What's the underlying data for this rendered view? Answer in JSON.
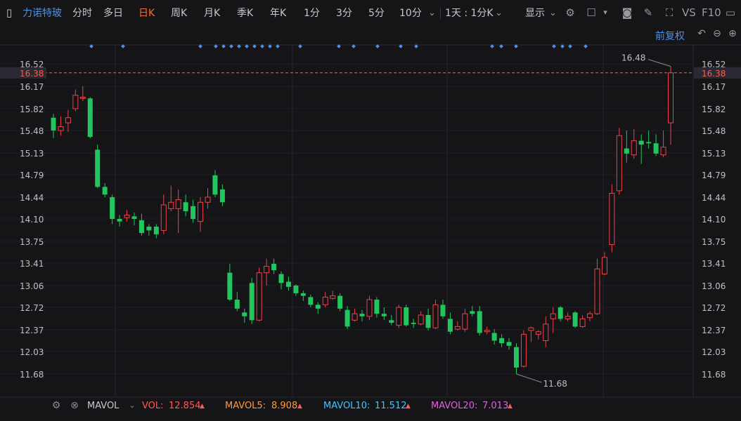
{
  "toolbar": {
    "stock_name": "力诺特玻",
    "tabs": [
      "分时",
      "多日",
      "日K",
      "周K",
      "月K",
      "季K",
      "年K",
      "1分",
      "3分",
      "5分",
      "10分"
    ],
    "active_tab": "日K",
    "interval_select": "1天 : 1分K",
    "display_label": "显示",
    "vs_label": "VS",
    "f10_label": "F10"
  },
  "sub_header": {
    "adjust_label": "前复权"
  },
  "colors": {
    "up": "#f0404a",
    "down": "#22c55e",
    "price_line": "#ff6a2a",
    "marker": "#4f8fe8",
    "vol": "#ff5a5a",
    "ma5": "#ff9a3c",
    "ma10": "#3cc8ff",
    "ma20": "#e060e0"
  },
  "chart_data": {
    "type": "candlestick",
    "y_ticks": [
      "16.52",
      "16.17",
      "15.82",
      "15.48",
      "15.13",
      "14.79",
      "14.44",
      "14.10",
      "13.75",
      "13.41",
      "13.06",
      "12.72",
      "12.37",
      "12.03",
      "11.68"
    ],
    "ylim": [
      11.68,
      16.52
    ],
    "current_price": "16.38",
    "max_label": "16.48",
    "min_label": "11.68",
    "candles": [
      [
        15.68,
        15.48,
        15.74,
        15.36
      ],
      [
        15.48,
        15.54,
        15.7,
        15.4
      ],
      [
        15.6,
        15.68,
        15.8,
        15.46
      ],
      [
        15.82,
        16.03,
        16.12,
        15.78
      ],
      [
        15.98,
        16.0,
        16.17,
        15.94
      ],
      [
        15.98,
        15.38,
        16.0,
        15.36
      ],
      [
        15.18,
        14.6,
        15.26,
        14.58
      ],
      [
        14.6,
        14.48,
        14.66,
        14.44
      ],
      [
        14.44,
        14.1,
        14.48,
        14.02
      ],
      [
        14.1,
        14.06,
        14.16,
        13.98
      ],
      [
        14.12,
        14.16,
        14.24,
        14.06
      ],
      [
        14.14,
        14.1,
        14.2,
        14.0
      ],
      [
        14.08,
        13.88,
        14.18,
        13.84
      ],
      [
        13.98,
        13.92,
        14.02,
        13.84
      ],
      [
        13.98,
        13.86,
        14.02,
        13.8
      ],
      [
        13.92,
        14.32,
        14.48,
        13.86
      ],
      [
        14.26,
        14.36,
        14.62,
        14.22
      ],
      [
        14.26,
        14.4,
        14.56,
        13.88
      ],
      [
        14.36,
        14.22,
        14.48,
        14.14
      ],
      [
        14.3,
        14.1,
        14.4,
        14.04
      ],
      [
        14.06,
        14.36,
        14.44,
        13.9
      ],
      [
        14.36,
        14.44,
        14.58,
        14.26
      ],
      [
        14.78,
        14.48,
        14.86,
        14.44
      ],
      [
        14.56,
        14.36,
        14.64,
        14.3
      ],
      [
        13.26,
        12.84,
        13.4,
        12.82
      ],
      [
        12.84,
        12.7,
        12.96,
        12.66
      ],
      [
        12.64,
        12.58,
        12.7,
        12.48
      ],
      [
        13.1,
        12.52,
        13.18,
        12.46
      ],
      [
        12.52,
        13.26,
        13.34,
        12.5
      ],
      [
        13.26,
        13.36,
        13.48,
        13.06
      ],
      [
        13.4,
        13.3,
        13.48,
        13.24
      ],
      [
        13.24,
        13.1,
        13.28,
        13.0
      ],
      [
        13.12,
        13.04,
        13.2,
        12.98
      ],
      [
        13.06,
        12.94,
        13.08,
        12.9
      ],
      [
        12.94,
        12.9,
        12.98,
        12.82
      ],
      [
        12.88,
        12.76,
        12.92,
        12.72
      ],
      [
        12.76,
        12.7,
        12.8,
        12.62
      ],
      [
        12.76,
        12.88,
        12.96,
        12.72
      ],
      [
        12.86,
        12.9,
        12.98,
        12.84
      ],
      [
        12.9,
        12.7,
        12.94,
        12.66
      ],
      [
        12.68,
        12.42,
        12.74,
        12.38
      ],
      [
        12.52,
        12.62,
        12.7,
        12.5
      ],
      [
        12.62,
        12.58,
        12.68,
        12.5
      ],
      [
        12.58,
        12.84,
        12.9,
        12.52
      ],
      [
        12.84,
        12.62,
        12.88,
        12.56
      ],
      [
        12.62,
        12.58,
        12.72,
        12.52
      ],
      [
        12.52,
        12.48,
        12.6,
        12.44
      ],
      [
        12.44,
        12.72,
        12.76,
        12.4
      ],
      [
        12.72,
        12.44,
        12.76,
        12.42
      ],
      [
        12.48,
        12.46,
        12.54,
        12.4
      ],
      [
        12.46,
        12.6,
        12.66,
        12.44
      ],
      [
        12.6,
        12.4,
        12.7,
        12.36
      ],
      [
        12.4,
        12.76,
        12.84,
        12.38
      ],
      [
        12.76,
        12.58,
        12.84,
        12.54
      ],
      [
        12.54,
        12.34,
        12.64,
        12.3
      ],
      [
        12.38,
        12.42,
        12.5,
        12.36
      ],
      [
        12.38,
        12.62,
        12.7,
        12.34
      ],
      [
        12.66,
        12.62,
        12.74,
        12.58
      ],
      [
        12.66,
        12.32,
        12.74,
        12.28
      ],
      [
        12.34,
        12.36,
        12.42,
        12.3
      ],
      [
        12.32,
        12.2,
        12.38,
        12.14
      ],
      [
        12.24,
        12.16,
        12.3,
        12.1
      ],
      [
        12.18,
        12.12,
        12.24,
        12.06
      ],
      [
        12.1,
        11.78,
        12.16,
        11.68
      ],
      [
        11.8,
        12.3,
        12.36,
        11.78
      ],
      [
        12.36,
        12.4,
        12.42,
        12.18
      ],
      [
        12.3,
        12.34,
        12.36,
        12.22
      ],
      [
        12.2,
        12.46,
        12.58,
        12.1
      ],
      [
        12.54,
        12.62,
        12.72,
        12.32
      ],
      [
        12.72,
        12.54,
        12.74,
        12.5
      ],
      [
        12.54,
        12.58,
        12.64,
        12.5
      ],
      [
        12.64,
        12.42,
        12.66,
        12.4
      ],
      [
        12.42,
        12.54,
        12.6,
        12.4
      ],
      [
        12.56,
        12.62,
        12.66,
        12.5
      ],
      [
        12.62,
        13.32,
        13.48,
        12.6
      ],
      [
        13.24,
        13.5,
        13.58,
        13.22
      ],
      [
        13.7,
        14.5,
        14.64,
        13.58
      ],
      [
        14.54,
        15.4,
        15.52,
        14.48
      ],
      [
        15.2,
        15.12,
        15.48,
        14.98
      ],
      [
        15.1,
        15.32,
        15.5,
        15.04
      ],
      [
        15.32,
        15.26,
        15.42,
        14.96
      ],
      [
        15.3,
        15.28,
        15.48,
        15.2
      ],
      [
        15.28,
        15.12,
        15.42,
        15.08
      ],
      [
        15.1,
        15.22,
        15.48,
        15.06
      ],
      [
        15.6,
        16.38,
        16.48,
        15.26
      ]
    ],
    "markers_x": [
      130,
      175,
      285,
      307,
      318,
      329,
      340,
      351,
      362,
      373,
      384,
      395,
      427,
      482,
      503,
      537,
      570,
      592,
      700,
      713,
      734,
      788,
      800,
      811,
      833
    ]
  },
  "volume_bar": {
    "indicator": "MAVOL",
    "vol_label": "VOL:",
    "vol_value": "12.854",
    "ma5_label": "MAVOL5:",
    "ma5_value": "8.908",
    "ma10_label": "MAVOL10:",
    "ma10_value": "11.512",
    "ma20_label": "MAVOL20:",
    "ma20_value": "7.013"
  }
}
